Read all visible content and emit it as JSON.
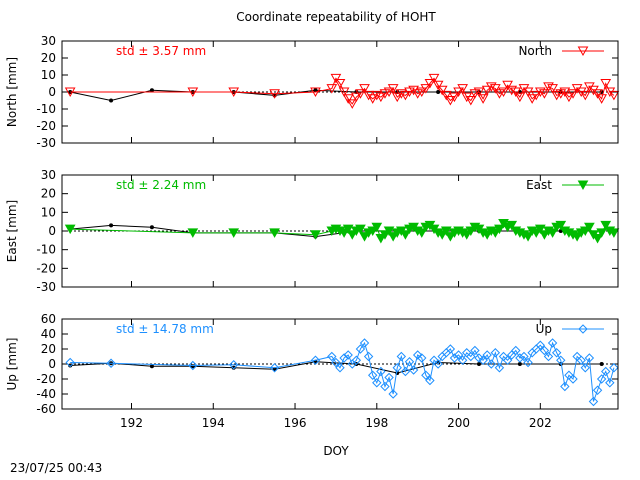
{
  "title": "Coordinate repeatability of HOHT",
  "xlabel": "DOY",
  "footer": "23/07/25 00:43",
  "chart_data": [
    {
      "type": "line",
      "ylabel": "North [mm]",
      "legend": "North",
      "legend_position": "top-right",
      "std_label": "std ± 3.57 mm",
      "color": "#ff0000",
      "marker": "triangle-down-open",
      "xlim": [
        190.3,
        203.9
      ],
      "ylim": [
        -30,
        30
      ],
      "yticks": [
        -30,
        -20,
        -10,
        0,
        10,
        20,
        30
      ],
      "reference": {
        "x": [
          190.5,
          191.5,
          192.5,
          193.5,
          194.5,
          195.5,
          196.5,
          197.5,
          198.5,
          199.5,
          200.5,
          201.5,
          202.5,
          203.5
        ],
        "values": [
          0,
          -5,
          1,
          0,
          0,
          -2,
          1,
          0,
          0,
          0,
          0,
          0,
          0,
          0
        ]
      },
      "series": [
        {
          "name": "North",
          "x": [
            190.5,
            193.5,
            194.5,
            195.5,
            196.5,
            196.9,
            197.0,
            197.1,
            197.2,
            197.3,
            197.4,
            197.5,
            197.6,
            197.7,
            197.8,
            197.9,
            198.0,
            198.1,
            198.2,
            198.3,
            198.4,
            198.5,
            198.6,
            198.7,
            198.8,
            198.9,
            199.0,
            199.1,
            199.2,
            199.3,
            199.4,
            199.5,
            199.6,
            199.7,
            199.8,
            199.9,
            200.0,
            200.1,
            200.2,
            200.3,
            200.4,
            200.5,
            200.6,
            200.7,
            200.8,
            200.9,
            201.0,
            201.1,
            201.2,
            201.3,
            201.4,
            201.5,
            201.6,
            201.7,
            201.8,
            201.9,
            202.0,
            202.1,
            202.2,
            202.3,
            202.4,
            202.5,
            202.6,
            202.7,
            202.8,
            202.9,
            203.0,
            203.1,
            203.2,
            203.3,
            203.4,
            203.5,
            203.6,
            203.7,
            203.8
          ],
          "values": [
            0,
            0,
            0,
            -1,
            0,
            2,
            8,
            5,
            0,
            -4,
            -7,
            -3,
            -1,
            2,
            -2,
            -4,
            -2,
            -3,
            -1,
            0,
            2,
            -3,
            -1,
            -2,
            0,
            1,
            -1,
            0,
            2,
            5,
            8,
            4,
            1,
            -2,
            -5,
            -3,
            0,
            2,
            -3,
            -5,
            -1,
            0,
            -4,
            1,
            3,
            2,
            -1,
            0,
            4,
            1,
            0,
            -3,
            2,
            0,
            -4,
            -2,
            0,
            -1,
            3,
            2,
            -2,
            -1,
            0,
            -3,
            -1,
            2,
            0,
            -2,
            3,
            1,
            -1,
            -4,
            5,
            0,
            -2
          ]
        }
      ]
    },
    {
      "type": "line",
      "ylabel": "East [mm]",
      "legend": "East",
      "legend_position": "top-right",
      "std_label": "std ± 2.24 mm",
      "color": "#00bb00",
      "marker": "triangle-down-filled",
      "xlim": [
        190.3,
        203.9
      ],
      "ylim": [
        -30,
        30
      ],
      "yticks": [
        -30,
        -20,
        -10,
        0,
        10,
        20,
        30
      ],
      "reference": {
        "x": [
          190.5,
          191.5,
          192.5,
          193.5,
          194.5,
          195.5,
          196.5,
          197.5,
          198.5,
          199.5,
          200.5,
          201.5,
          202.5,
          203.5
        ],
        "values": [
          1,
          3,
          2,
          -1,
          -1,
          -1,
          -3,
          0,
          0,
          0,
          0,
          0,
          0,
          0
        ]
      },
      "series": [
        {
          "name": "East",
          "x": [
            190.5,
            193.5,
            194.5,
            195.5,
            196.5,
            196.9,
            197.0,
            197.1,
            197.2,
            197.3,
            197.4,
            197.5,
            197.6,
            197.7,
            197.8,
            197.9,
            198.0,
            198.1,
            198.2,
            198.3,
            198.4,
            198.5,
            198.6,
            198.7,
            198.8,
            198.9,
            199.0,
            199.1,
            199.2,
            199.3,
            199.4,
            199.5,
            199.6,
            199.7,
            199.8,
            199.9,
            200.0,
            200.1,
            200.2,
            200.3,
            200.4,
            200.5,
            200.6,
            200.7,
            200.8,
            200.9,
            201.0,
            201.1,
            201.2,
            201.3,
            201.4,
            201.5,
            201.6,
            201.7,
            201.8,
            201.9,
            202.0,
            202.1,
            202.2,
            202.3,
            202.4,
            202.5,
            202.6,
            202.7,
            202.8,
            202.9,
            203.0,
            203.1,
            203.2,
            203.3,
            203.4,
            203.5,
            203.6,
            203.7,
            203.8
          ],
          "values": [
            1,
            -1,
            -1,
            -1,
            -2,
            0,
            1,
            0,
            -1,
            1,
            -2,
            0,
            1,
            -3,
            -1,
            0,
            2,
            -4,
            -2,
            0,
            -3,
            -1,
            0,
            -2,
            1,
            2,
            0,
            -1,
            2,
            3,
            1,
            -1,
            -2,
            0,
            -3,
            -1,
            0,
            -1,
            -2,
            0,
            2,
            1,
            -1,
            -2,
            0,
            -1,
            1,
            4,
            2,
            3,
            0,
            -1,
            -2,
            -3,
            0,
            -1,
            1,
            -2,
            0,
            -1,
            2,
            3,
            0,
            -1,
            -2,
            -3,
            -1,
            0,
            2,
            -2,
            -4,
            -1,
            3,
            0,
            -1
          ]
        }
      ]
    },
    {
      "type": "line",
      "ylabel": "Up [mm]",
      "legend": "Up",
      "legend_position": "top-right",
      "std_label": "std ± 14.78 mm",
      "color": "#1e90ff",
      "marker": "diamond-open",
      "xlim": [
        190.3,
        203.9
      ],
      "ylim": [
        -60,
        60
      ],
      "yticks": [
        -60,
        -40,
        -20,
        0,
        20,
        40,
        60
      ],
      "reference": {
        "x": [
          190.5,
          191.5,
          192.5,
          193.5,
          194.5,
          195.5,
          196.5,
          197.5,
          198.5,
          199.5,
          200.5,
          201.5,
          202.5,
          203.5
        ],
        "values": [
          -2,
          1,
          -3,
          -3,
          -5,
          -7,
          3,
          0,
          -12,
          2,
          0,
          0,
          0,
          0
        ]
      },
      "series": [
        {
          "name": "Up",
          "x": [
            190.5,
            191.5,
            193.5,
            194.5,
            195.5,
            196.5,
            196.9,
            197.0,
            197.1,
            197.2,
            197.3,
            197.4,
            197.5,
            197.6,
            197.7,
            197.8,
            197.9,
            198.0,
            198.1,
            198.2,
            198.3,
            198.4,
            198.5,
            198.6,
            198.7,
            198.8,
            198.9,
            199.0,
            199.1,
            199.2,
            199.3,
            199.4,
            199.5,
            199.6,
            199.7,
            199.8,
            199.9,
            200.0,
            200.1,
            200.2,
            200.3,
            200.4,
            200.5,
            200.6,
            200.7,
            200.8,
            200.9,
            201.0,
            201.1,
            201.2,
            201.3,
            201.4,
            201.5,
            201.6,
            201.7,
            201.8,
            201.9,
            202.0,
            202.1,
            202.2,
            202.3,
            202.4,
            202.5,
            202.6,
            202.7,
            202.8,
            202.9,
            203.0,
            203.1,
            203.2,
            203.3,
            203.4,
            203.5,
            203.6,
            203.7,
            203.8
          ],
          "values": [
            2,
            1,
            -2,
            -1,
            -5,
            5,
            10,
            2,
            -5,
            8,
            12,
            0,
            5,
            20,
            28,
            10,
            -15,
            -25,
            -10,
            -30,
            -18,
            -40,
            -5,
            10,
            -10,
            3,
            -8,
            12,
            8,
            -15,
            -22,
            5,
            0,
            10,
            15,
            20,
            8,
            12,
            5,
            15,
            10,
            18,
            8,
            5,
            12,
            0,
            15,
            -5,
            10,
            5,
            12,
            18,
            8,
            10,
            2,
            15,
            20,
            25,
            18,
            10,
            28,
            15,
            5,
            -30,
            -15,
            -20,
            10,
            5,
            -5,
            8,
            -50,
            -35,
            -20,
            -10,
            -25,
            -5
          ]
        }
      ]
    }
  ]
}
